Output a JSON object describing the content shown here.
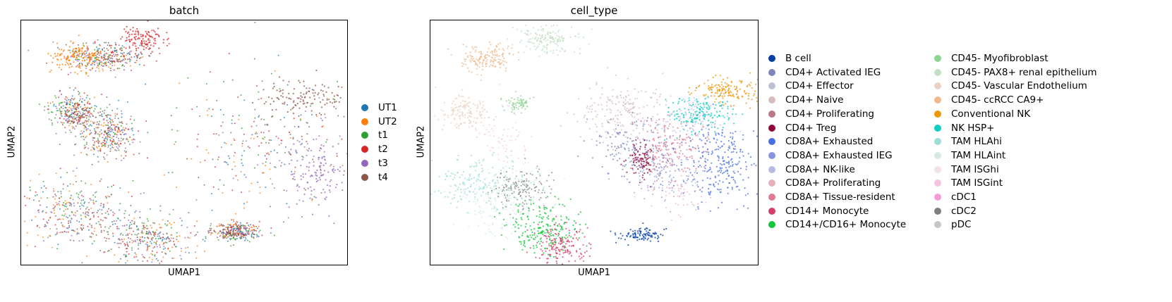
{
  "chart_data": [
    {
      "type": "scatter",
      "title": "batch",
      "xlabel": "UMAP1",
      "ylabel": "UMAP2",
      "legend_position": "right",
      "legend": [
        {
          "name": "UT1",
          "color": "#1f77b4"
        },
        {
          "name": "UT2",
          "color": "#ff7f0e"
        },
        {
          "name": "t1",
          "color": "#2ca02c"
        },
        {
          "name": "t2",
          "color": "#d62728"
        },
        {
          "name": "t3",
          "color": "#9467bd"
        },
        {
          "name": "t4",
          "color": "#8c564b"
        }
      ]
    },
    {
      "type": "scatter",
      "title": "cell_type",
      "xlabel": "UMAP1",
      "ylabel": "UMAP2",
      "legend_position": "right",
      "legend": [
        {
          "name": "B cell",
          "color": "#023fa5"
        },
        {
          "name": "CD4+ Activated IEG",
          "color": "#7d87b9"
        },
        {
          "name": "CD4+ Effector",
          "color": "#bec1d4"
        },
        {
          "name": "CD4+ Naive",
          "color": "#d6bcc0"
        },
        {
          "name": "CD4+ Proliferating",
          "color": "#bb7784"
        },
        {
          "name": "CD4+ Treg",
          "color": "#8e063b"
        },
        {
          "name": "CD8A+ Exhausted",
          "color": "#4a6fe3"
        },
        {
          "name": "CD8A+ Exhausted IEG",
          "color": "#8595e1"
        },
        {
          "name": "CD8A+ NK-like",
          "color": "#b5bbe3"
        },
        {
          "name": "CD8A+ Proliferating",
          "color": "#e6afb9"
        },
        {
          "name": "CD8A+ Tissue-resident",
          "color": "#e07b91"
        },
        {
          "name": "CD14+ Monocyte",
          "color": "#d33f6a"
        },
        {
          "name": "CD14+/CD16+ Monocyte",
          "color": "#11c638"
        },
        {
          "name": "CD45- Myofibroblast",
          "color": "#8dd593"
        },
        {
          "name": "CD45- PAX8+ renal epithelium",
          "color": "#c6dec7"
        },
        {
          "name": "CD45- Vascular Endothelium",
          "color": "#ead3c6"
        },
        {
          "name": "CD45- ccRCC CA9+",
          "color": "#f0b98d"
        },
        {
          "name": "Conventional NK",
          "color": "#ef9708"
        },
        {
          "name": "NK HSP+",
          "color": "#0fcfc0"
        },
        {
          "name": "TAM HLAhi",
          "color": "#9cded6"
        },
        {
          "name": "TAM HLAint",
          "color": "#d5eae7"
        },
        {
          "name": "TAM ISGhi",
          "color": "#f3e1eb"
        },
        {
          "name": "TAM ISGint",
          "color": "#f6c4e1"
        },
        {
          "name": "cDC1",
          "color": "#f79cd4"
        },
        {
          "name": "cDC2",
          "color": "#7f7f7f"
        },
        {
          "name": "pDC",
          "color": "#c7c7c7"
        }
      ]
    }
  ]
}
